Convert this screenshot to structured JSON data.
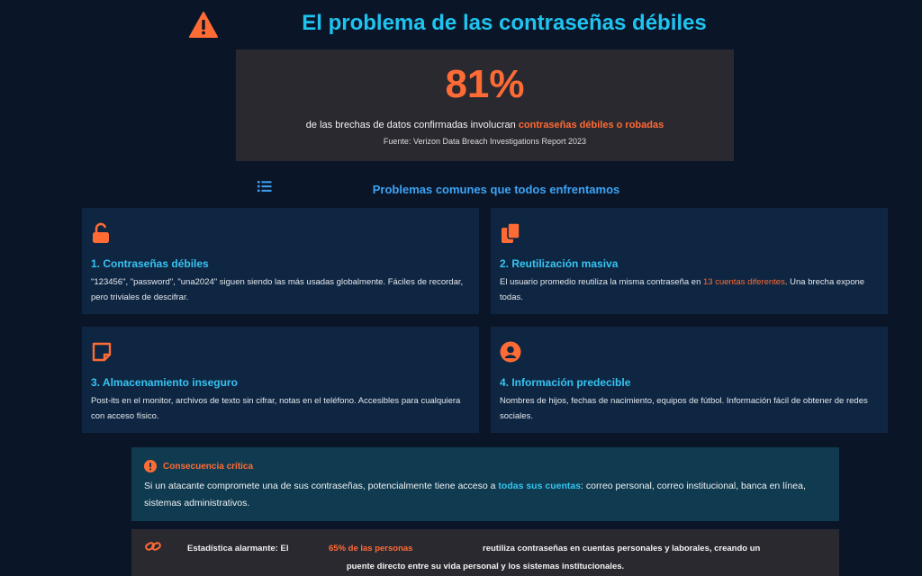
{
  "header": {
    "title": "El problema de las contraseñas débiles",
    "icon": "warning-icon"
  },
  "stat": {
    "value": "81%",
    "desc_before": "de las brechas de datos confirmadas involucran ",
    "desc_highlight": "contraseñas débiles o robadas",
    "source": "Fuente: Verizon Data Breach Investigations Report 2023"
  },
  "section": {
    "title": "Problemas comunes que todos enfrentamos",
    "icon": "list-icon"
  },
  "cards": [
    {
      "icon": "unlock-icon",
      "title": "1. Contraseñas débiles",
      "text": "\"123456\", \"password\", \"una2024\" siguen siendo las más usadas globalmente. Fáciles de recordar, pero triviales de descifrar."
    },
    {
      "icon": "copy-icon",
      "title": "2. Reutilización masiva",
      "text_before": "El usuario promedio reutiliza la misma contraseña en ",
      "text_highlight": "13 cuentas diferentes",
      "text_after": ". Una brecha expone todas."
    },
    {
      "icon": "sticky-note-icon",
      "title": "3. Almacenamiento inseguro",
      "text": "Post-its en el monitor, archivos de texto sin cifrar, notas en el teléfono. Accesibles para cualquiera con acceso físico."
    },
    {
      "icon": "user-circle-icon",
      "title": "4. Información predecible",
      "text": "Nombres de hijos, fechas de nacimiento, equipos de fútbol. Información fácil de obtener de redes sociales."
    }
  ],
  "critical": {
    "icon": "exclamation-circle-icon",
    "title": "Consecuencia crítica",
    "body_before": "Si un atacante compromete una de sus contraseñas, potencialmente tiene acceso a ",
    "body_highlight": "todas sus cuentas",
    "body_after": ": correo personal, correo institucional, banca en línea, sistemas administrativos."
  },
  "alarm": {
    "icon": "link-icon",
    "label": "Estadística alarmante: El",
    "highlight": "65% de las personas",
    "text": "reutiliza contraseñas en cuentas personales y laborales, creando un",
    "text2": "puente directo entre su vida personal y los sistemas institucionales."
  },
  "colors": {
    "accent": "#ff6b35",
    "title": "#1fc3f0",
    "background": "#0a1628"
  }
}
